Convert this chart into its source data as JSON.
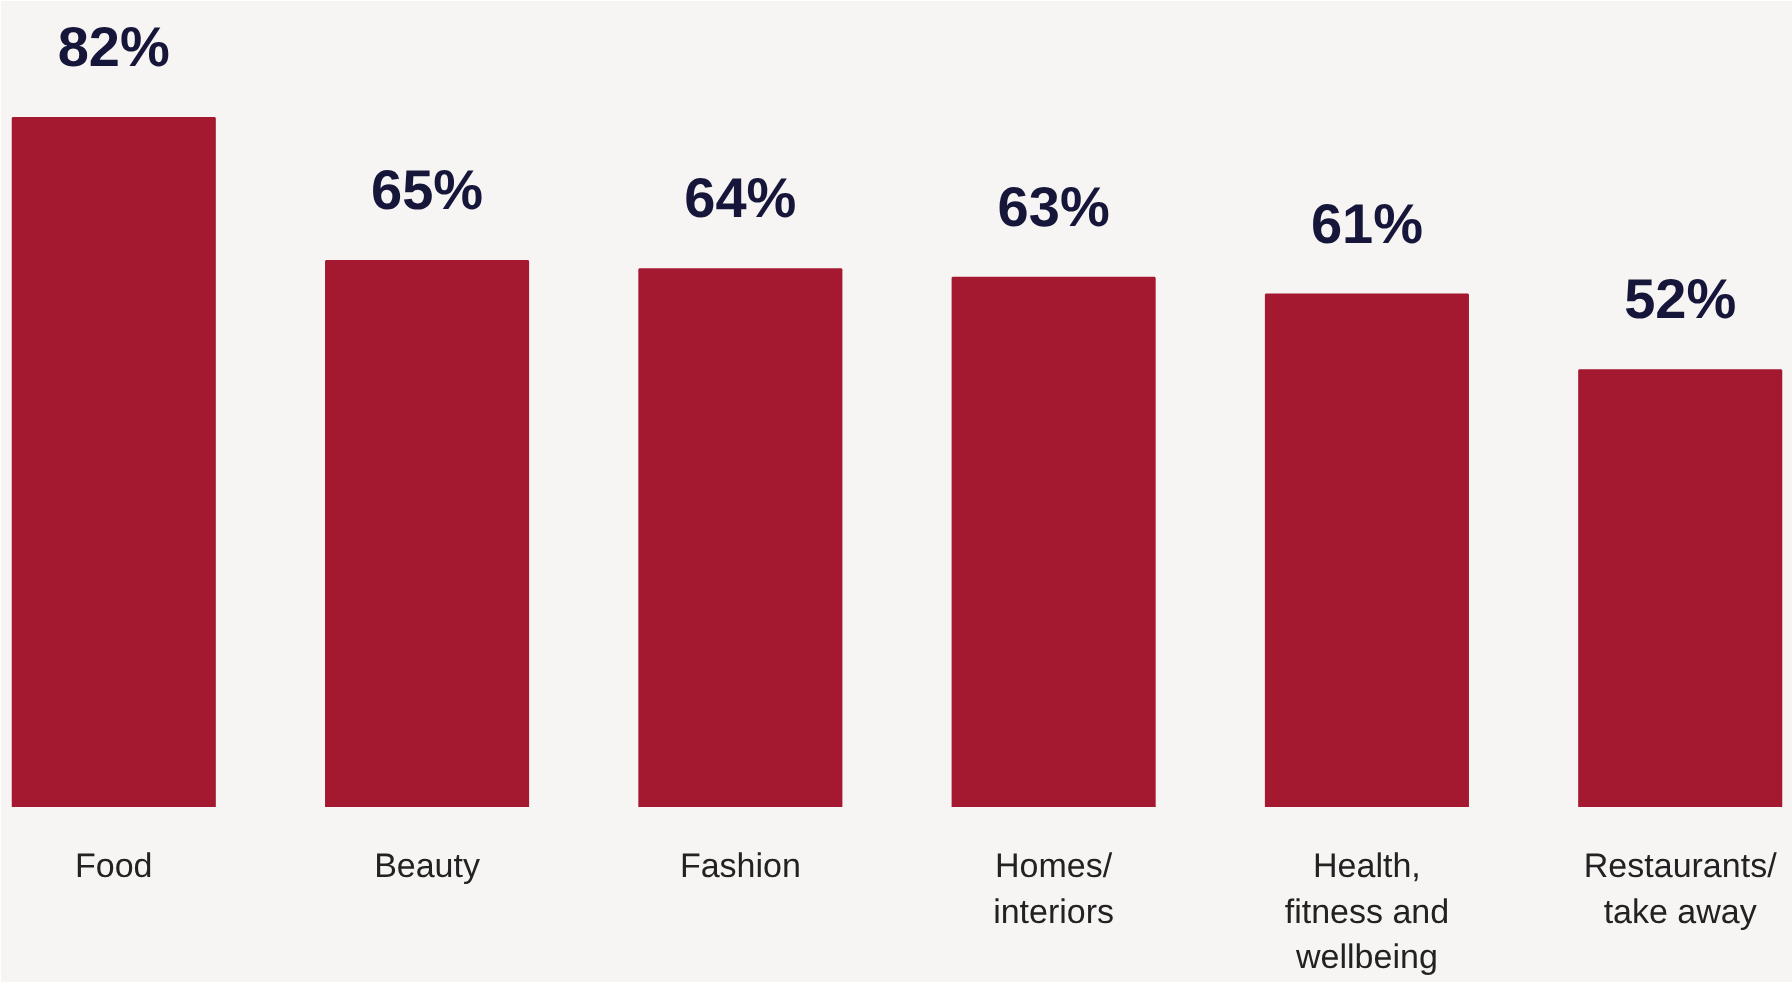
{
  "chart_data": {
    "type": "bar",
    "categories": [
      "Food",
      "Beauty",
      "Fashion",
      "Homes/\ninteriors",
      "Health,\nfitness and\nwellbeing",
      "Restaurants/\ntake away"
    ],
    "values": [
      82,
      65,
      64,
      63,
      61,
      52
    ],
    "value_labels": [
      "82%",
      "65%",
      "64%",
      "63%",
      "61%",
      "52%"
    ],
    "color": "#a51930"
  }
}
